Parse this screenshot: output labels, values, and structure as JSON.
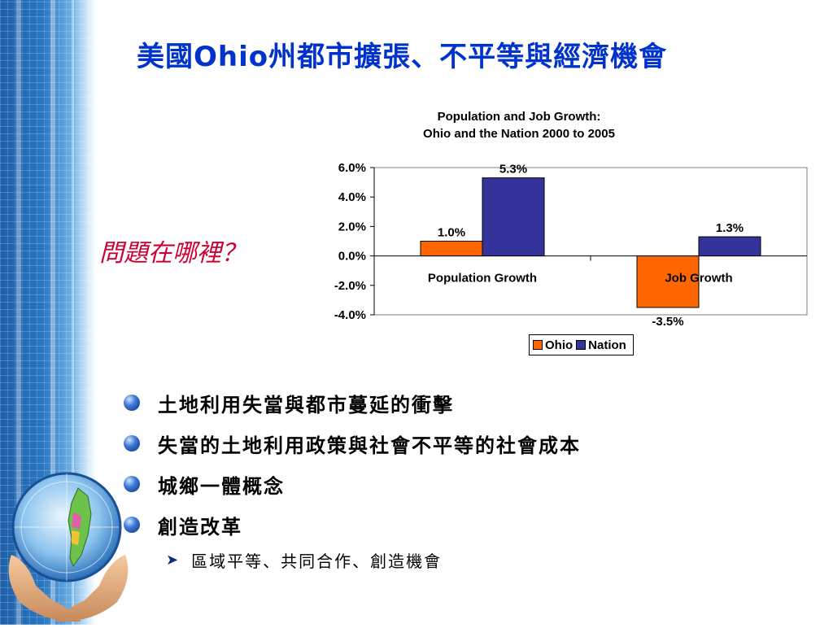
{
  "slide": {
    "title_prefix": "美國",
    "title_en": "Ohio",
    "title_suffix": "州都市擴張、不平等與經濟機會",
    "question": "問題在哪裡？",
    "bullets": [
      "土地利用失當與都市蔓延的衝擊",
      "失當的土地利用政策與社會不平等的社會成本",
      "城鄉一體概念",
      "創造改革"
    ],
    "sub_bullet": "區域平等、共同合作、創造機會"
  },
  "chart_data": {
    "type": "bar",
    "title_line1": "Population and Job Growth:",
    "title_line2": "Ohio and the Nation 2000 to 2005",
    "categories": [
      "Population Growth",
      "Job Growth"
    ],
    "series": [
      {
        "name": "Ohio",
        "color": "#ff6600",
        "values": [
          1.0,
          -3.5
        ],
        "labels": [
          "1.0%",
          "-3.5%"
        ]
      },
      {
        "name": "Nation",
        "color": "#333399",
        "values": [
          5.3,
          1.3
        ],
        "labels": [
          "5.3%",
          "1.3%"
        ]
      }
    ],
    "ylim": [
      -4,
      6
    ],
    "yticks": [
      6,
      4,
      2,
      0,
      -2,
      -4
    ],
    "ytick_labels": [
      "6.0%",
      "4.0%",
      "2.0%",
      "0.0%",
      "-2.0%",
      "-4.0%"
    ],
    "legend_position": "bottom"
  }
}
